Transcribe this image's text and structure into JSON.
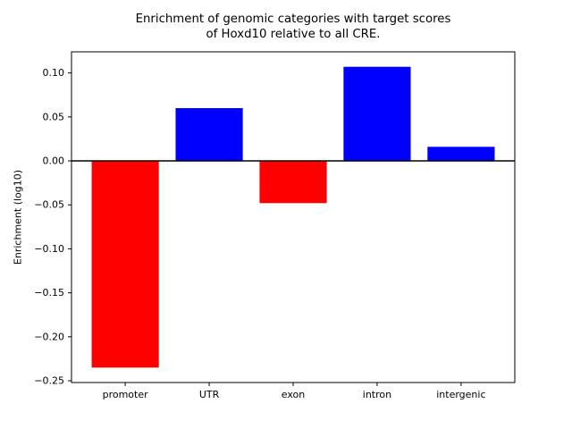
{
  "title": {
    "line1": "Enrichment of genomic categories with target scores",
    "line2": "of Hoxd10 relative to all CRE."
  },
  "chart_data": {
    "type": "bar",
    "title": "Enrichment of genomic categories with target scores of Hoxd10 relative to all CRE.",
    "xlabel": "",
    "ylabel": "Enrichment (log10)",
    "categories": [
      "promoter",
      "UTR",
      "exon",
      "intron",
      "intergenic"
    ],
    "values": [
      -0.235,
      0.06,
      -0.048,
      0.107,
      0.016
    ],
    "bar_colors": [
      "#ff0000",
      "#0000ff",
      "#ff0000",
      "#0000ff",
      "#0000ff"
    ],
    "positive_color": "#0000ff",
    "negative_color": "#ff0000",
    "axis_color": "#000000",
    "background_color": "#ffffff",
    "ylim": [
      -0.252,
      0.124
    ],
    "yticks": [
      0.1,
      0.05,
      0.0,
      -0.05,
      -0.1,
      -0.15,
      -0.2,
      -0.25
    ],
    "ytick_labels": [
      "0.10",
      "0.05",
      "0.00",
      "−0.05",
      "−0.10",
      "−0.15",
      "−0.20",
      "−0.25"
    ],
    "zero_line": true,
    "grid": false,
    "legend": null
  }
}
